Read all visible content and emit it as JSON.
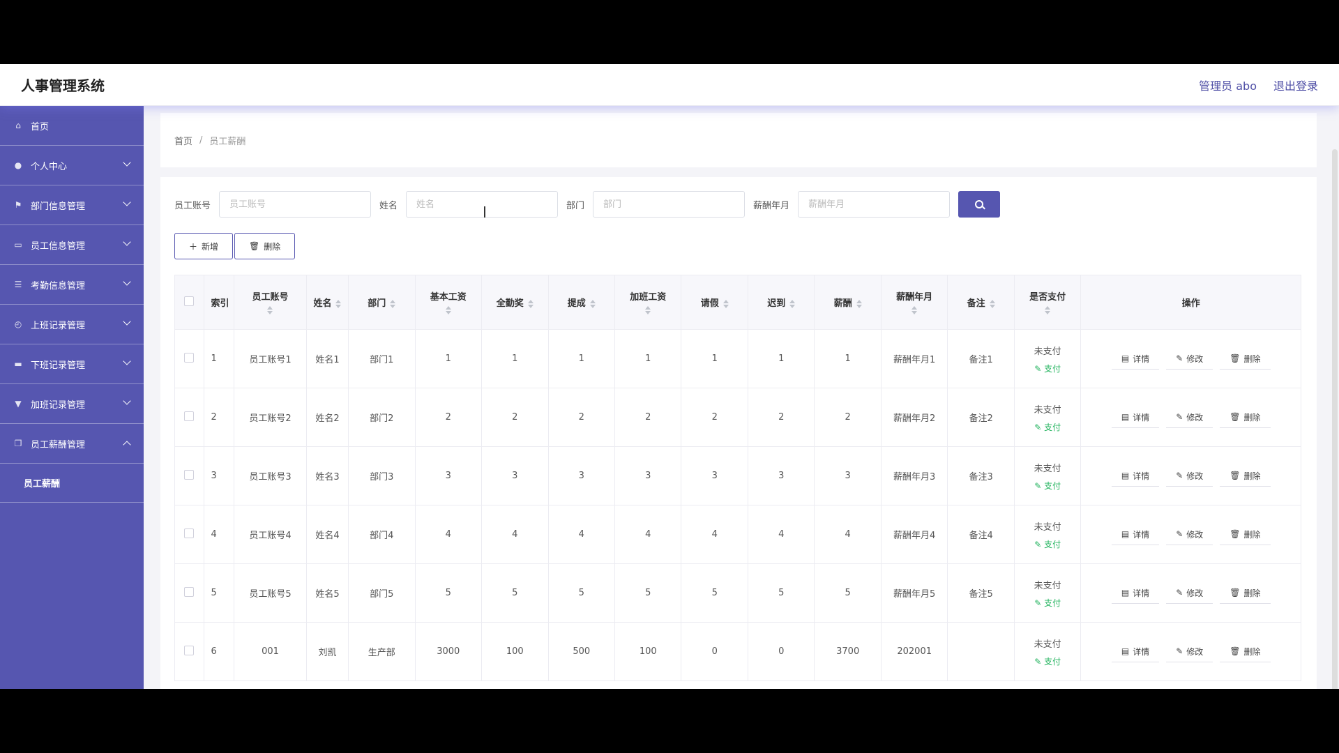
{
  "header": {
    "title": "人事管理系统",
    "user_label": "管理员 abo",
    "logout_label": "退出登录"
  },
  "sidebar": {
    "items": [
      {
        "label": "首页",
        "icon": "home-icon",
        "expandable": false
      },
      {
        "label": "个人中心",
        "icon": "user-icon",
        "expandable": true
      },
      {
        "label": "部门信息管理",
        "icon": "flag-icon",
        "expandable": true
      },
      {
        "label": "员工信息管理",
        "icon": "id-card-icon",
        "expandable": true
      },
      {
        "label": "考勤信息管理",
        "icon": "sliders-icon",
        "expandable": true
      },
      {
        "label": "上班记录管理",
        "icon": "clock-in-icon",
        "expandable": true
      },
      {
        "label": "下班记录管理",
        "icon": "clock-out-icon",
        "expandable": true
      },
      {
        "label": "加班记录管理",
        "icon": "trophy-icon",
        "expandable": true
      },
      {
        "label": "员工薪酬管理",
        "icon": "copy-icon",
        "expandable": true,
        "expanded": true
      }
    ],
    "submenu": {
      "label": "员工薪酬"
    }
  },
  "breadcrumb": {
    "home": "首页",
    "sep": "/",
    "current": "员工薪酬"
  },
  "search": {
    "fields": [
      {
        "label": "员工账号",
        "placeholder": "员工账号"
      },
      {
        "label": "姓名",
        "placeholder": "姓名"
      },
      {
        "label": "部门",
        "placeholder": "部门"
      },
      {
        "label": "薪酬年月",
        "placeholder": "薪酬年月"
      }
    ]
  },
  "actions": {
    "add_label": "新增",
    "delete_label": "删除"
  },
  "table": {
    "headers": [
      "索引",
      "员工账号",
      "姓名",
      "部门",
      "基本工资",
      "全勤奖",
      "提成",
      "加班工资",
      "请假",
      "迟到",
      "薪酬",
      "薪酬年月",
      "备注",
      "是否支付",
      "操作"
    ],
    "rows": [
      {
        "index": "1",
        "account": "员工账号1",
        "name": "姓名1",
        "dept": "部门1",
        "base": "1",
        "attendance": "1",
        "commission": "1",
        "overtime": "1",
        "leave": "1",
        "late": "1",
        "salary": "1",
        "month": "薪酬年月1",
        "note": "备注1",
        "status": "未支付",
        "pay": "支付"
      },
      {
        "index": "2",
        "account": "员工账号2",
        "name": "姓名2",
        "dept": "部门2",
        "base": "2",
        "attendance": "2",
        "commission": "2",
        "overtime": "2",
        "leave": "2",
        "late": "2",
        "salary": "2",
        "month": "薪酬年月2",
        "note": "备注2",
        "status": "未支付",
        "pay": "支付"
      },
      {
        "index": "3",
        "account": "员工账号3",
        "name": "姓名3",
        "dept": "部门3",
        "base": "3",
        "attendance": "3",
        "commission": "3",
        "overtime": "3",
        "leave": "3",
        "late": "3",
        "salary": "3",
        "month": "薪酬年月3",
        "note": "备注3",
        "status": "未支付",
        "pay": "支付"
      },
      {
        "index": "4",
        "account": "员工账号4",
        "name": "姓名4",
        "dept": "部门4",
        "base": "4",
        "attendance": "4",
        "commission": "4",
        "overtime": "4",
        "leave": "4",
        "late": "4",
        "salary": "4",
        "month": "薪酬年月4",
        "note": "备注4",
        "status": "未支付",
        "pay": "支付"
      },
      {
        "index": "5",
        "account": "员工账号5",
        "name": "姓名5",
        "dept": "部门5",
        "base": "5",
        "attendance": "5",
        "commission": "5",
        "overtime": "5",
        "leave": "5",
        "late": "5",
        "salary": "5",
        "month": "薪酬年月5",
        "note": "备注5",
        "status": "未支付",
        "pay": "支付"
      },
      {
        "index": "6",
        "account": "001",
        "name": "刘凯",
        "dept": "生产部",
        "base": "3000",
        "attendance": "100",
        "commission": "500",
        "overtime": "100",
        "leave": "0",
        "late": "0",
        "salary": "3700",
        "month": "202001",
        "note": "",
        "status": "未支付",
        "pay": "支付"
      }
    ],
    "row_actions": {
      "detail": "详情",
      "edit": "修改",
      "delete": "删除"
    }
  },
  "colors": {
    "accent": "#5656b0",
    "pay_green": "#22b35e"
  }
}
